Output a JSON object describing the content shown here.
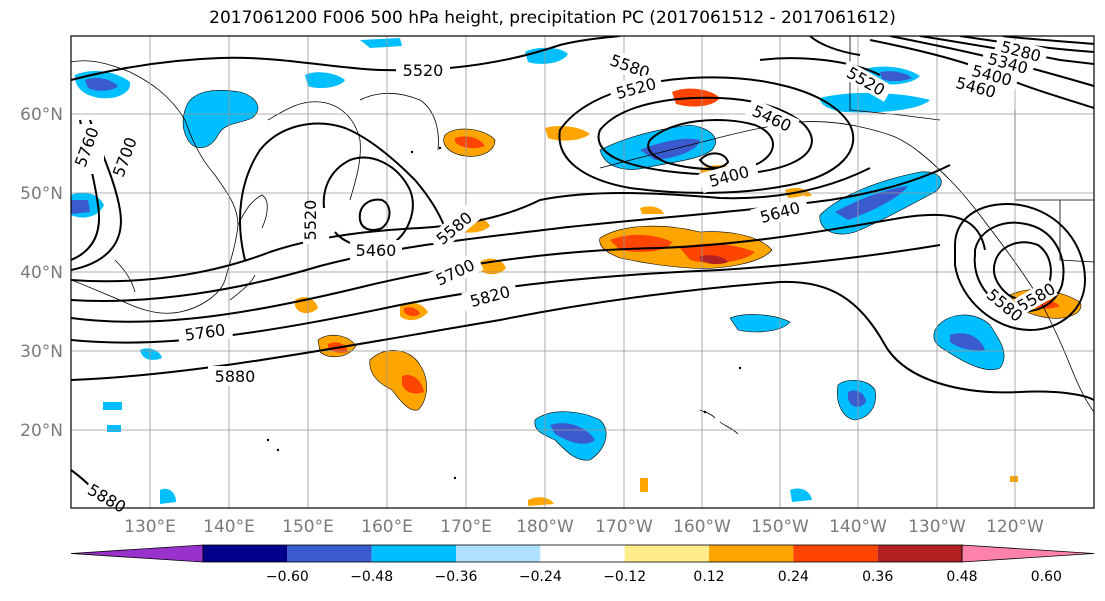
{
  "title": "2017061200 F006 500 hPa height, precipitation PC (2017061512 - 2017061612)",
  "lat_labels": [
    "60°N",
    "50°N",
    "40°N",
    "30°N",
    "20°N"
  ],
  "lon_labels": [
    "130°E",
    "140°E",
    "150°E",
    "160°E",
    "170°E",
    "180°W",
    "170°W",
    "160°W",
    "150°W",
    "140°W",
    "130°W",
    "120°W"
  ],
  "contour_labels": [
    "5520",
    "5580",
    "5520",
    "5460",
    "5400",
    "5640",
    "5520",
    "5460",
    "5580",
    "5700",
    "5820",
    "5760",
    "5880",
    "5760",
    "5700",
    "5280",
    "5340",
    "5400",
    "5460",
    "5520",
    "5580",
    "5580",
    "5880"
  ],
  "colorbar": {
    "colors": [
      "#9932CC",
      "#00008B",
      "#3A5BCE",
      "#00BFFF",
      "#B0E2FF",
      "#FFFFFF",
      "#FFEC8B",
      "#FFA500",
      "#FF4500",
      "#B22222",
      "#FF82AB"
    ],
    "labels": [
      "−0.60",
      "−0.48",
      "−0.36",
      "−0.24",
      "−0.12",
      "0.12",
      "0.24",
      "0.36",
      "0.48",
      "0.60"
    ]
  }
}
